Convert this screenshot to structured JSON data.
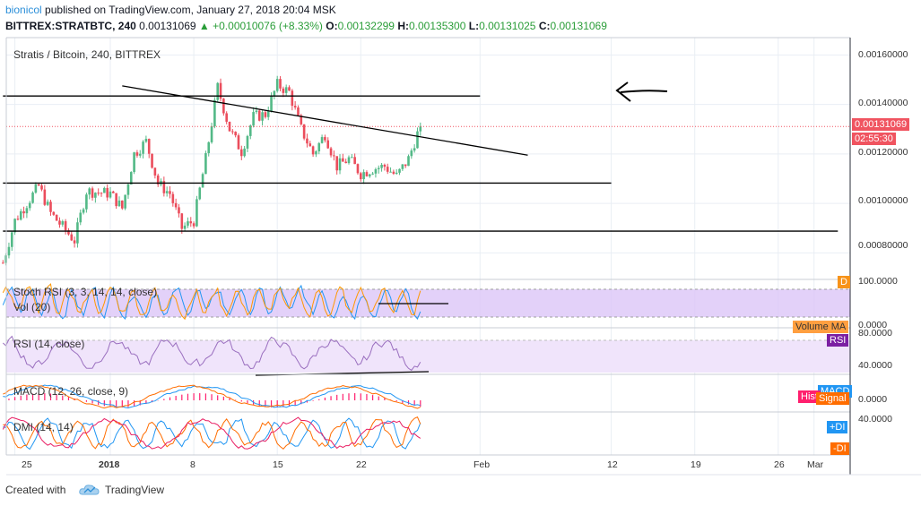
{
  "header": {
    "publisher": "bionicol",
    "published_text": "published on TradingView.com, January 27, 2018 20:04 MSK",
    "symbol": "BITTREX:STRATBTC, 240",
    "last": "0.00131069",
    "change_arrow": "▲",
    "change": "+0.00010076 (+8.33%)",
    "o_label": "O:",
    "o": "0.00132299",
    "h_label": "H:",
    "h": "0.00135300",
    "l_label": "L:",
    "l": "0.00131025",
    "c_label": "C:",
    "c": "0.00131069"
  },
  "price_pane": {
    "title": "Stratis / Bitcoin, 240, BITTREX",
    "y_ticks": [
      "0.00160000",
      "0.00140000",
      "0.00120000",
      "0.00100000",
      "0.00080000"
    ],
    "price_tag": "0.00131069",
    "countdown_tag": "02:55:30"
  },
  "stoch_pane": {
    "label": "Stoch RSI (3, 3, 14, 14, close)",
    "vol_label": "Vol (20)",
    "ticks": [
      "100.0000",
      "0.0000"
    ],
    "tag_d": "D",
    "tag_volma": "Volume MA"
  },
  "rsi_pane": {
    "label": "RSI (14, close)",
    "ticks": [
      "80.0000",
      "40.0000"
    ],
    "tag": "RSI"
  },
  "macd_pane": {
    "label": "MACD (12, 26, close, 9)",
    "tick": "0.0000",
    "tag_hist": "Hist",
    "tag_macd": "MACD",
    "tag_signal": "Signal"
  },
  "dmi_pane": {
    "label": "DMI (14, 14)",
    "tick": "40.0000",
    "tag_pdi": "+DI",
    "tag_ndi": "-DI"
  },
  "x_axis": {
    "ticks": [
      {
        "label": "25",
        "day": -7
      },
      {
        "label": "2018",
        "day": 1
      },
      {
        "label": "8",
        "day": 8
      },
      {
        "label": "15",
        "day": 15
      },
      {
        "label": "22",
        "day": 22
      },
      {
        "label": "Feb",
        "day": 32
      },
      {
        "label": "12",
        "day": 43
      },
      {
        "label": "19",
        "day": 50
      },
      {
        "label": "26",
        "day": 57
      },
      {
        "label": "Mar",
        "day": 60
      }
    ]
  },
  "footer": {
    "created_with": "Created with",
    "brand": "TradingView"
  },
  "colors": {
    "up": "#53b987",
    "down": "#eb4d5c",
    "grid": "#e9eef4",
    "axis": "#2a2e39",
    "stoch_fill": "#dcc6f7",
    "rsi_fill": "#f0e4fb",
    "rsi_line": "#9a6fbf",
    "macd_line": "#2196f3",
    "signal_line": "#ff6d00",
    "hist": "#ff1f6e",
    "pdi": "#2196f3",
    "ndi": "#ff6d00",
    "adx": "#e91e63",
    "tag_red": "#f05460"
  },
  "chart_data": {
    "type": "candlestick",
    "title": "Stratis / Bitcoin, 240, BITTREX",
    "x_range_days": [
      -8,
      62
    ],
    "ylim": [
      0.0007,
      0.00167
    ],
    "last_price": 0.00131069,
    "anchors": [
      [
        -8,
        0.00076
      ],
      [
        -7,
        0.00093
      ],
      [
        -5,
        0.00107
      ],
      [
        -4,
        0.00096
      ],
      [
        -2,
        0.00085
      ],
      [
        -1,
        0.00105
      ],
      [
        1,
        0.00104
      ],
      [
        2,
        0.00098
      ],
      [
        3,
        0.0012
      ],
      [
        4,
        0.00125
      ],
      [
        5,
        0.00108
      ],
      [
        6,
        0.00104
      ],
      [
        7,
        0.0009
      ],
      [
        8,
        0.00093
      ],
      [
        9,
        0.00118
      ],
      [
        10,
        0.00147
      ],
      [
        11,
        0.0013
      ],
      [
        12,
        0.00121
      ],
      [
        13,
        0.00135
      ],
      [
        14,
        0.00136
      ],
      [
        15,
        0.00148
      ],
      [
        16,
        0.00145
      ],
      [
        17,
        0.0013
      ],
      [
        18,
        0.0012
      ],
      [
        19,
        0.00128
      ],
      [
        20,
        0.00115
      ],
      [
        21,
        0.00118
      ],
      [
        22,
        0.00112
      ],
      [
        23,
        0.00114
      ],
      [
        24,
        0.00115
      ],
      [
        25,
        0.00111
      ],
      [
        26,
        0.00118
      ],
      [
        27,
        0.001315
      ]
    ],
    "lines": [
      {
        "from": [
          -8,
          0.001434
        ],
        "to": [
          32,
          0.001434
        ]
      },
      {
        "from": [
          -8,
          0.001082
        ],
        "to": [
          43,
          0.001082
        ]
      },
      {
        "from": [
          -8,
          0.000888
        ],
        "to": [
          62,
          0.000888
        ]
      },
      {
        "from": [
          2,
          0.001475
        ],
        "to": [
          36,
          0.001195
        ]
      }
    ]
  }
}
